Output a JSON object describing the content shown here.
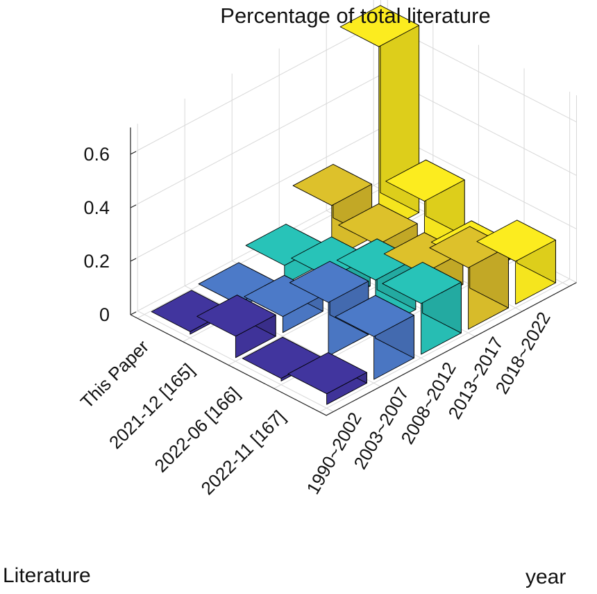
{
  "chart_data": {
    "type": "bar3d",
    "title": "Percentage of total literature",
    "xlabel": "Literature",
    "ylabel": "year",
    "zlim": [
      0,
      0.7
    ],
    "zticks": [
      0,
      0.2,
      0.4,
      0.6
    ],
    "zticklabels": [
      "0",
      "0.2",
      "0.4",
      "0.6"
    ],
    "grid": true,
    "categories": [
      "This Paper",
      "2021-12 [165]",
      "2022-06 [166]",
      "2022-11 [167]"
    ],
    "series": [
      {
        "name": "1990~2002",
        "color": "#3f3399",
        "values": [
          0.01,
          0.08,
          0.01,
          0.04
        ]
      },
      {
        "name": "2003~2007",
        "color": "#4a76c2",
        "values": [
          0.02,
          0.06,
          0.2,
          0.16
        ]
      },
      {
        "name": "2008~2012",
        "color": "#27bdb3",
        "values": [
          0.07,
          0.11,
          0.19,
          0.19
        ]
      },
      {
        "name": "2013~2017",
        "color": "#d7bb2a",
        "values": [
          0.2,
          0.14,
          0.12,
          0.23
        ]
      },
      {
        "name": "2018~2022",
        "color": "#f5e51e",
        "values": [
          0.7,
          0.21,
          0.07,
          0.16
        ]
      }
    ]
  }
}
